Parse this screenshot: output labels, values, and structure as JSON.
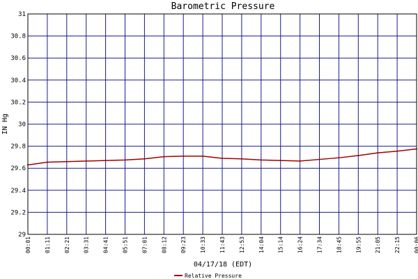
{
  "chart_data": {
    "type": "line",
    "title": "Barometric Pressure",
    "xlabel": "04/17/18 (EDT)",
    "ylabel": "IN Hg",
    "ylim": [
      29,
      31
    ],
    "y_ticks": [
      "29",
      "29.2",
      "29.4",
      "29.6",
      "29.8",
      "30",
      "30.2",
      "30.4",
      "30.6",
      "30.8",
      "31"
    ],
    "x_ticks": [
      "00:01",
      "01:11",
      "02:21",
      "03:31",
      "04:41",
      "05:51",
      "07:01",
      "08:12",
      "09:23",
      "10:33",
      "11:43",
      "12:53",
      "14:04",
      "15:14",
      "16:24",
      "17:34",
      "18:45",
      "19:55",
      "21:05",
      "22:15",
      "00:06"
    ],
    "grid": true,
    "legend_position": "bottom-center",
    "series": [
      {
        "name": "Relative Pressure",
        "color": "#a00000",
        "x": [
          "00:01",
          "01:11",
          "02:21",
          "03:31",
          "04:41",
          "05:51",
          "07:01",
          "08:12",
          "09:23",
          "10:33",
          "11:43",
          "12:53",
          "14:04",
          "15:14",
          "16:24",
          "17:34",
          "18:45",
          "19:55",
          "21:05",
          "22:15",
          "00:06"
        ],
        "values": [
          29.63,
          29.655,
          29.66,
          29.665,
          29.67,
          29.675,
          29.685,
          29.705,
          29.71,
          29.71,
          29.69,
          29.685,
          29.675,
          29.67,
          29.665,
          29.68,
          29.695,
          29.715,
          29.74,
          29.755,
          29.775
        ]
      }
    ]
  }
}
